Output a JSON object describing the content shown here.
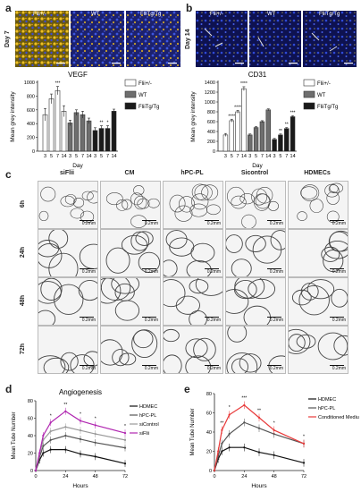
{
  "panels": {
    "a": {
      "label": "a",
      "day_label": "Day 7",
      "genotypes": [
        "Flii+/-",
        "WT",
        "FliiTg/Tg"
      ]
    },
    "b": {
      "label": "b",
      "day_label": "Day 14",
      "genotypes": [
        "Flii+/-",
        "WT",
        "FliiTg/Tg"
      ]
    },
    "c": {
      "label": "c",
      "columns": [
        "siFlii",
        "CM",
        "hPC-PL",
        "Sicontrol",
        "HDMECs"
      ],
      "rows": [
        "6h",
        "24h",
        "48h",
        "72h"
      ],
      "scale_text": "0.2mm"
    },
    "d": {
      "label": "d"
    },
    "e": {
      "label": "e"
    }
  },
  "chart_data": [
    {
      "type": "bar",
      "title": "VEGF",
      "xlabel": "Day",
      "ylabel": "Mean grey intensity",
      "ylim": [
        0,
        1000
      ],
      "yticks": [
        0,
        200,
        400,
        600,
        800,
        1000
      ],
      "groups": [
        {
          "name": "Flii+/-",
          "categories": [
            "3",
            "5",
            "7",
            "14"
          ],
          "values": [
            530,
            760,
            880,
            580
          ],
          "errors": [
            90,
            70,
            60,
            80
          ],
          "color": "#ffffff",
          "stars": [
            "",
            "",
            "***",
            ""
          ]
        },
        {
          "name": "WT",
          "categories": [
            "3",
            "5",
            "7",
            "14"
          ],
          "values": [
            410,
            560,
            530,
            440
          ],
          "errors": [
            40,
            40,
            50,
            40
          ],
          "color": "#6e6e6e",
          "stars": [
            "",
            "",
            "",
            ""
          ]
        },
        {
          "name": "FliiTg/Tg",
          "categories": [
            "3",
            "5",
            "7",
            "14"
          ],
          "values": [
            300,
            330,
            330,
            580
          ],
          "errors": [
            40,
            40,
            40,
            30
          ],
          "color": "#1a1a1a",
          "stars": [
            "",
            "**",
            "*",
            ""
          ]
        }
      ],
      "legend": [
        "Flii+/-",
        "WT",
        "FliiTg/Tg"
      ]
    },
    {
      "type": "bar",
      "title": "CD31",
      "xlabel": "Day",
      "ylabel": "Mean grey intensity",
      "ylim": [
        0,
        1400
      ],
      "yticks": [
        0,
        200,
        400,
        600,
        800,
        1000,
        1200,
        1400
      ],
      "groups": [
        {
          "name": "Flii+/-",
          "categories": [
            "3",
            "5",
            "7",
            "14"
          ],
          "values": [
            330,
            620,
            800,
            1270
          ],
          "errors": [
            30,
            30,
            30,
            40
          ],
          "color": "#ffffff",
          "stars": [
            "",
            "****",
            "****",
            "****"
          ]
        },
        {
          "name": "WT",
          "categories": [
            "3",
            "5",
            "7",
            "14"
          ],
          "values": [
            330,
            480,
            600,
            840
          ],
          "errors": [
            20,
            20,
            20,
            20
          ],
          "color": "#6e6e6e",
          "stars": [
            "",
            "",
            "",
            ""
          ]
        },
        {
          "name": "FliiTg/Tg",
          "categories": [
            "3",
            "5",
            "7",
            "14"
          ],
          "values": [
            240,
            330,
            460,
            700
          ],
          "errors": [
            20,
            20,
            20,
            20
          ],
          "color": "#1a1a1a",
          "stars": [
            "",
            "**",
            "**",
            "***"
          ]
        }
      ],
      "legend": [
        "Flii+/-",
        "WT",
        "FliiTg/Tg"
      ]
    },
    {
      "type": "line",
      "title": "Angiogenesis",
      "xlabel": "Hours",
      "ylabel": "Mean Tube Number",
      "xlim": [
        0,
        72
      ],
      "ylim": [
        0,
        80
      ],
      "xticks": [
        0,
        24,
        48,
        72
      ],
      "yticks": [
        0,
        20,
        40,
        60,
        80
      ],
      "x": [
        0,
        3,
        6,
        12,
        24,
        36,
        48,
        72
      ],
      "series": [
        {
          "name": "HDMEC",
          "values": [
            0,
            12,
            20,
            24,
            24,
            19,
            16,
            8
          ],
          "color": "#111111"
        },
        {
          "name": "hPC-PL",
          "values": [
            0,
            15,
            28,
            35,
            40,
            36,
            32,
            26
          ],
          "color": "#555555"
        },
        {
          "name": "siControl",
          "values": [
            0,
            18,
            35,
            45,
            50,
            46,
            42,
            35
          ],
          "color": "#999999"
        },
        {
          "name": "siFlii",
          "values": [
            0,
            20,
            40,
            55,
            68,
            57,
            52,
            43
          ],
          "color": "#b026b0"
        }
      ],
      "stars": [
        "",
        "",
        "",
        "*",
        "**",
        "*",
        "*",
        "*"
      ],
      "legend": [
        "HDMEC",
        "hPC-PL",
        "siControl",
        "siFlii"
      ]
    },
    {
      "type": "line",
      "xlabel": "Hours",
      "ylabel": "Mean Tube Number",
      "xlim": [
        0,
        72
      ],
      "ylim": [
        0,
        80
      ],
      "xticks": [
        0,
        24,
        48,
        72
      ],
      "yticks": [
        0,
        20,
        40,
        60,
        80
      ],
      "x": [
        0,
        3,
        6,
        12,
        24,
        36,
        48,
        72
      ],
      "series": [
        {
          "name": "HDMEC",
          "values": [
            0,
            12,
            20,
            24,
            24,
            19,
            16,
            8
          ],
          "color": "#111111"
        },
        {
          "name": "hPC-PL",
          "values": [
            0,
            15,
            28,
            38,
            50,
            44,
            38,
            28
          ],
          "color": "#555555"
        },
        {
          "name": "Conditioned Medium",
          "values": [
            0,
            20,
            42,
            58,
            68,
            55,
            42,
            28
          ],
          "color": "#e83a3a"
        }
      ],
      "stars": [
        "",
        "",
        "**",
        "*",
        "***",
        "**",
        "*",
        "*"
      ],
      "legend": [
        "HDMEC",
        "hPC-PL",
        "Conditioned Medium"
      ]
    }
  ]
}
